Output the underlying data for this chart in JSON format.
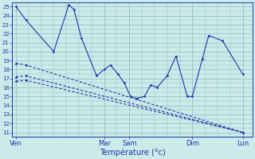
{
  "xlabel": "Température (°c)",
  "bg_color": "#cceaea",
  "grid_color": "#88bbbb",
  "line_color": "#1a3aaa",
  "ylim": [
    10.5,
    25.5
  ],
  "yticks": [
    11,
    12,
    13,
    14,
    15,
    16,
    17,
    18,
    19,
    20,
    21,
    22,
    23,
    24,
    25
  ],
  "xlim": [
    -0.15,
    9.4
  ],
  "xtick_positions": [
    0,
    3.5,
    4.5,
    7.0,
    9.0
  ],
  "xtick_labels": [
    "Ven",
    "Mar",
    "Sam",
    "Dim",
    "Lun"
  ],
  "series1_x": [
    0,
    0.4,
    1.5,
    2.1,
    2.3,
    2.6,
    3.2,
    3.5,
    3.75,
    4.05,
    4.3,
    4.55,
    4.8,
    5.1,
    5.35,
    5.6,
    6.0,
    6.35,
    6.8,
    7.0,
    7.4,
    7.65,
    8.2,
    9.0
  ],
  "series1_y": [
    25,
    23.5,
    20.0,
    25.2,
    24.7,
    21.5,
    17.3,
    18.0,
    18.5,
    17.5,
    16.5,
    15.0,
    14.8,
    15.0,
    16.3,
    16.0,
    17.3,
    19.5,
    15.0,
    15.0,
    19.2,
    21.8,
    21.2,
    17.5
  ],
  "line2_x": [
    0,
    0.4,
    9.0
  ],
  "line2_y": [
    18.7,
    18.5,
    11.0
  ],
  "line3_x": [
    0,
    0.4,
    9.0
  ],
  "line3_y": [
    17.2,
    17.3,
    11.0
  ],
  "line4_x": [
    0,
    0.4,
    9.0
  ],
  "line4_y": [
    16.7,
    16.8,
    11.0
  ]
}
